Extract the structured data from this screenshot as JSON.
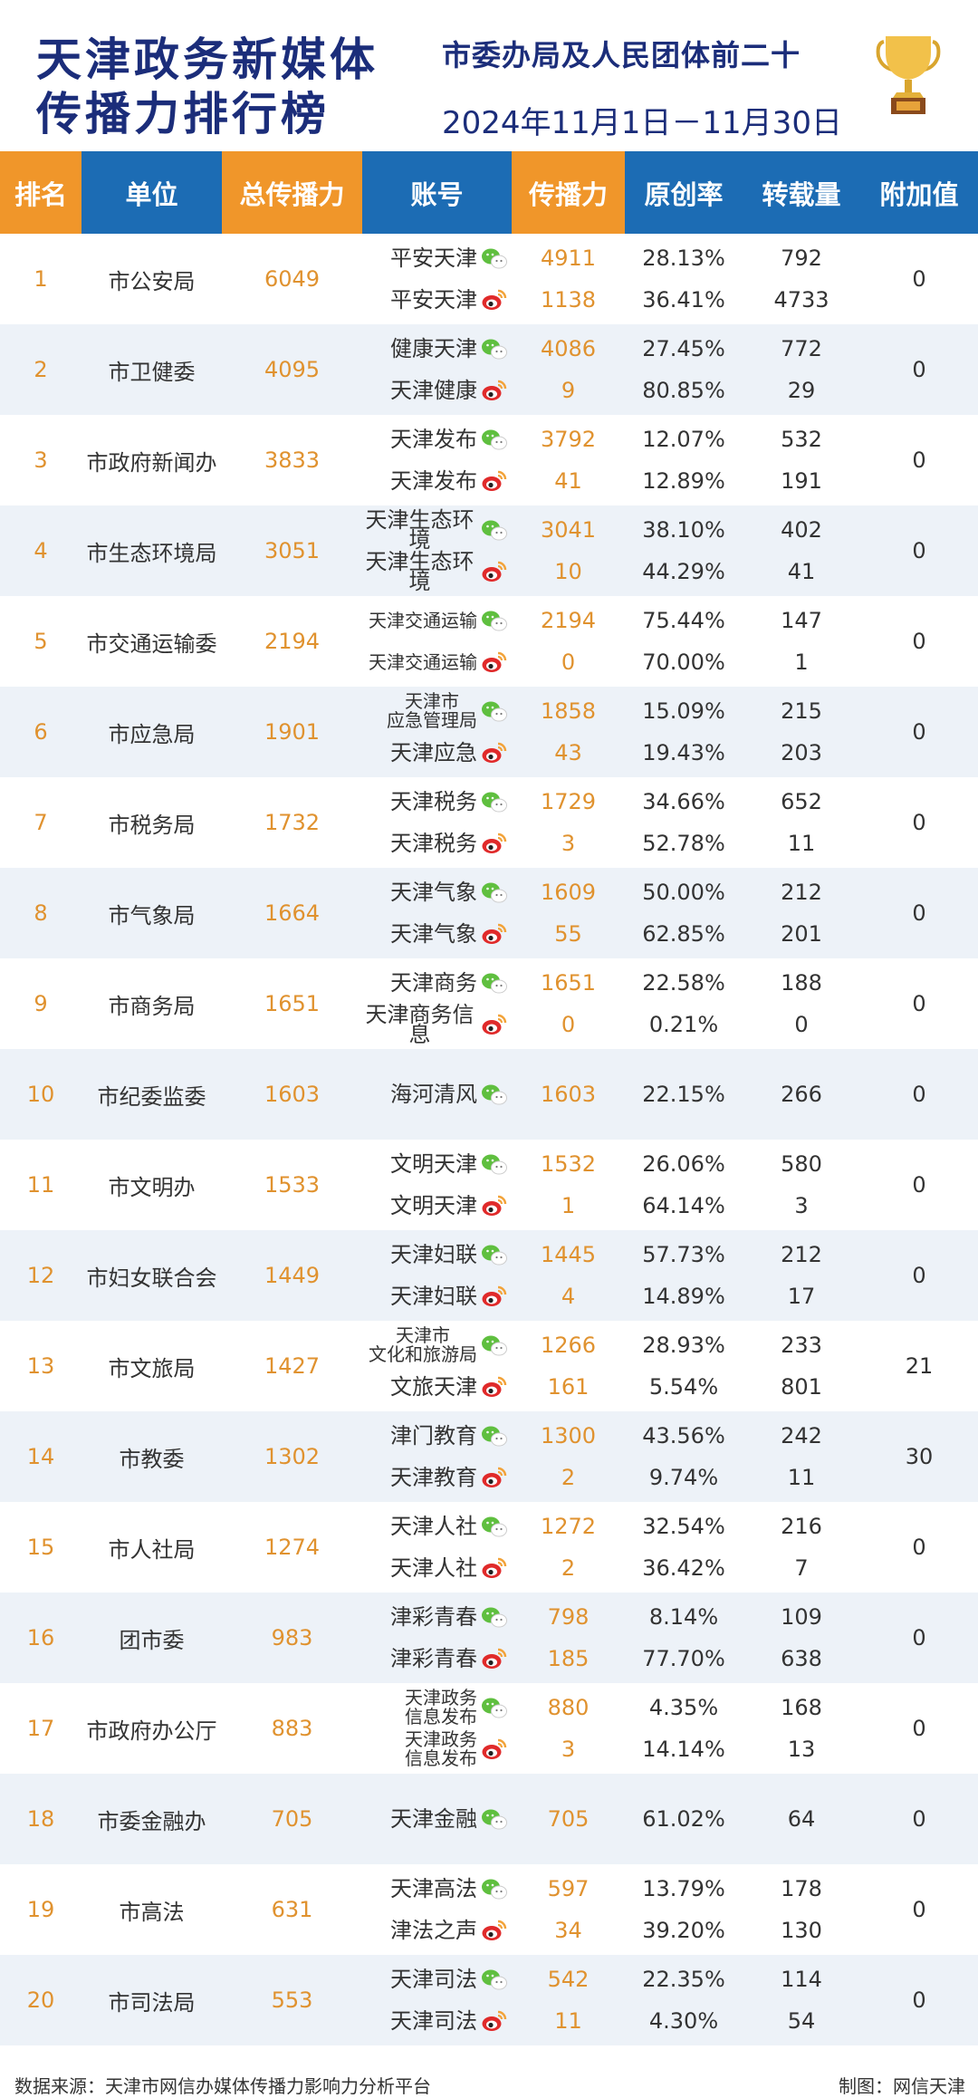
{
  "header": {
    "title_line1": "天津政务新媒体",
    "title_line2": "传播力排行榜",
    "subtitle": "市委办局及人民团体前二十",
    "date_range": "2024年11月1日－11月30日"
  },
  "columns": [
    "排名",
    "单位",
    "总传播力",
    "账号",
    "传播力",
    "原创率",
    "转载量",
    "附加值"
  ],
  "colors": {
    "orange": "#f0962a",
    "blue": "#1c6cb4",
    "navy": "#1b2d7a",
    "wechat": "#5fbf3f",
    "weibo": "#e02a2a"
  },
  "rows": [
    {
      "rank": "1",
      "unit": "市公安局",
      "total": "6049",
      "extra": "0",
      "accounts": [
        {
          "name": "平安天津",
          "platform": "wechat",
          "power": "4911",
          "orig": "28.13%",
          "repost": "792"
        },
        {
          "name": "平安天津",
          "platform": "weibo",
          "power": "1138",
          "orig": "36.41%",
          "repost": "4733"
        }
      ]
    },
    {
      "rank": "2",
      "unit": "市卫健委",
      "total": "4095",
      "extra": "0",
      "accounts": [
        {
          "name": "健康天津",
          "platform": "wechat",
          "power": "4086",
          "orig": "27.45%",
          "repost": "772"
        },
        {
          "name": "天津健康",
          "platform": "weibo",
          "power": "9",
          "orig": "80.85%",
          "repost": "29"
        }
      ]
    },
    {
      "rank": "3",
      "unit": "市政府新闻办",
      "total": "3833",
      "extra": "0",
      "accounts": [
        {
          "name": "天津发布",
          "platform": "wechat",
          "power": "3792",
          "orig": "12.07%",
          "repost": "532"
        },
        {
          "name": "天津发布",
          "platform": "weibo",
          "power": "41",
          "orig": "12.89%",
          "repost": "191"
        }
      ]
    },
    {
      "rank": "4",
      "unit": "市生态环境局",
      "total": "3051",
      "extra": "0",
      "accounts": [
        {
          "name": "天津生态环境",
          "platform": "wechat",
          "power": "3041",
          "orig": "38.10%",
          "repost": "402"
        },
        {
          "name": "天津生态环境",
          "platform": "weibo",
          "power": "10",
          "orig": "44.29%",
          "repost": "41"
        }
      ]
    },
    {
      "rank": "5",
      "unit": "市交通运输委",
      "total": "2194",
      "extra": "0",
      "accounts": [
        {
          "name": "天津交通运输",
          "platform": "wechat",
          "power": "2194",
          "orig": "75.44%",
          "repost": "147",
          "small": true
        },
        {
          "name": "天津交通运输",
          "platform": "weibo",
          "power": "0",
          "orig": "70.00%",
          "repost": "1",
          "small": true
        }
      ]
    },
    {
      "rank": "6",
      "unit": "市应急局",
      "total": "1901",
      "extra": "0",
      "accounts": [
        {
          "name": "天津市\n应急管理局",
          "platform": "wechat",
          "power": "1858",
          "orig": "15.09%",
          "repost": "215",
          "small": true
        },
        {
          "name": "天津应急",
          "platform": "weibo",
          "power": "43",
          "orig": "19.43%",
          "repost": "203"
        }
      ]
    },
    {
      "rank": "7",
      "unit": "市税务局",
      "total": "1732",
      "extra": "0",
      "accounts": [
        {
          "name": "天津税务",
          "platform": "wechat",
          "power": "1729",
          "orig": "34.66%",
          "repost": "652"
        },
        {
          "name": "天津税务",
          "platform": "weibo",
          "power": "3",
          "orig": "52.78%",
          "repost": "11"
        }
      ]
    },
    {
      "rank": "8",
      "unit": "市气象局",
      "total": "1664",
      "extra": "0",
      "accounts": [
        {
          "name": "天津气象",
          "platform": "wechat",
          "power": "1609",
          "orig": "50.00%",
          "repost": "212"
        },
        {
          "name": "天津气象",
          "platform": "weibo",
          "power": "55",
          "orig": "62.85%",
          "repost": "201"
        }
      ]
    },
    {
      "rank": "9",
      "unit": "市商务局",
      "total": "1651",
      "extra": "0",
      "accounts": [
        {
          "name": "天津商务",
          "platform": "wechat",
          "power": "1651",
          "orig": "22.58%",
          "repost": "188"
        },
        {
          "name": "天津商务信息",
          "platform": "weibo",
          "power": "0",
          "orig": "0.21%",
          "repost": "0"
        }
      ]
    },
    {
      "rank": "10",
      "unit": "市纪委监委",
      "total": "1603",
      "extra": "0",
      "accounts": [
        {
          "name": "海河清风",
          "platform": "wechat",
          "power": "1603",
          "orig": "22.15%",
          "repost": "266"
        }
      ]
    },
    {
      "rank": "11",
      "unit": "市文明办",
      "total": "1533",
      "extra": "0",
      "accounts": [
        {
          "name": "文明天津",
          "platform": "wechat",
          "power": "1532",
          "orig": "26.06%",
          "repost": "580"
        },
        {
          "name": "文明天津",
          "platform": "weibo",
          "power": "1",
          "orig": "64.14%",
          "repost": "3"
        }
      ]
    },
    {
      "rank": "12",
      "unit": "市妇女联合会",
      "total": "1449",
      "extra": "0",
      "accounts": [
        {
          "name": "天津妇联",
          "platform": "wechat",
          "power": "1445",
          "orig": "57.73%",
          "repost": "212"
        },
        {
          "name": "天津妇联",
          "platform": "weibo",
          "power": "4",
          "orig": "14.89%",
          "repost": "17"
        }
      ]
    },
    {
      "rank": "13",
      "unit": "市文旅局",
      "total": "1427",
      "extra": "21",
      "accounts": [
        {
          "name": "天津市\n文化和旅游局",
          "platform": "wechat",
          "power": "1266",
          "orig": "28.93%",
          "repost": "233",
          "small": true
        },
        {
          "name": "文旅天津",
          "platform": "weibo",
          "power": "161",
          "orig": "5.54%",
          "repost": "801"
        }
      ]
    },
    {
      "rank": "14",
      "unit": "市教委",
      "total": "1302",
      "extra": "30",
      "accounts": [
        {
          "name": "津门教育",
          "platform": "wechat",
          "power": "1300",
          "orig": "43.56%",
          "repost": "242"
        },
        {
          "name": "天津教育",
          "platform": "weibo",
          "power": "2",
          "orig": "9.74%",
          "repost": "11"
        }
      ]
    },
    {
      "rank": "15",
      "unit": "市人社局",
      "total": "1274",
      "extra": "0",
      "accounts": [
        {
          "name": "天津人社",
          "platform": "wechat",
          "power": "1272",
          "orig": "32.54%",
          "repost": "216"
        },
        {
          "name": "天津人社",
          "platform": "weibo",
          "power": "2",
          "orig": "36.42%",
          "repost": "7"
        }
      ]
    },
    {
      "rank": "16",
      "unit": "团市委",
      "total": "983",
      "extra": "0",
      "accounts": [
        {
          "name": "津彩青春",
          "platform": "wechat",
          "power": "798",
          "orig": "8.14%",
          "repost": "109"
        },
        {
          "name": "津彩青春",
          "platform": "weibo",
          "power": "185",
          "orig": "77.70%",
          "repost": "638"
        }
      ]
    },
    {
      "rank": "17",
      "unit": "市政府办公厅",
      "total": "883",
      "extra": "0",
      "accounts": [
        {
          "name": "天津政务\n信息发布",
          "platform": "wechat",
          "power": "880",
          "orig": "4.35%",
          "repost": "168",
          "small": true
        },
        {
          "name": "天津政务\n信息发布",
          "platform": "weibo",
          "power": "3",
          "orig": "14.14%",
          "repost": "13",
          "small": true
        }
      ]
    },
    {
      "rank": "18",
      "unit": "市委金融办",
      "total": "705",
      "extra": "0",
      "accounts": [
        {
          "name": "天津金融",
          "platform": "wechat",
          "power": "705",
          "orig": "61.02%",
          "repost": "64"
        }
      ]
    },
    {
      "rank": "19",
      "unit": "市高法",
      "total": "631",
      "extra": "0",
      "accounts": [
        {
          "name": "天津高法",
          "platform": "wechat",
          "power": "597",
          "orig": "13.79%",
          "repost": "178"
        },
        {
          "name": "津法之声",
          "platform": "weibo",
          "power": "34",
          "orig": "39.20%",
          "repost": "130"
        }
      ]
    },
    {
      "rank": "20",
      "unit": "市司法局",
      "total": "553",
      "extra": "0",
      "accounts": [
        {
          "name": "天津司法",
          "platform": "wechat",
          "power": "542",
          "orig": "22.35%",
          "repost": "114"
        },
        {
          "name": "天津司法",
          "platform": "weibo",
          "power": "11",
          "orig": "4.30%",
          "repost": "54"
        }
      ]
    }
  ],
  "footer": {
    "source": "数据来源：天津市网信办媒体传播力影响力分析平台",
    "credit": "制图：网信天津"
  }
}
